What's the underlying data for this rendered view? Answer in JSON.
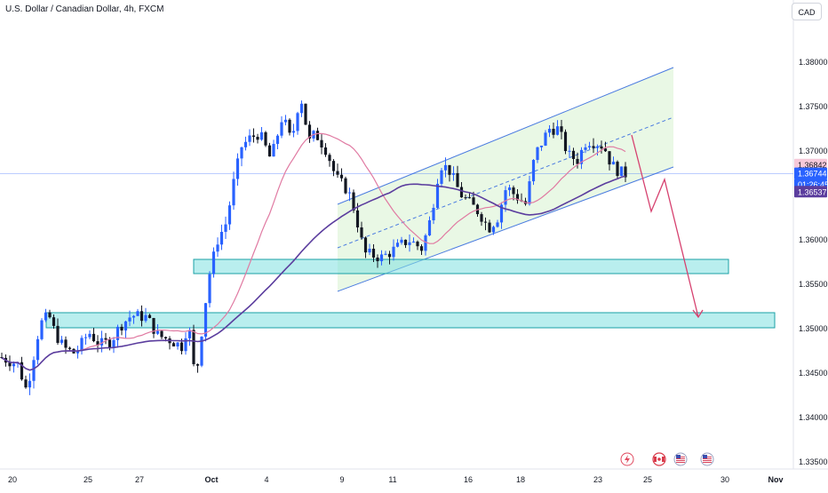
{
  "header": {
    "title": "U.S. Dollar / Canadian Dollar, 4h, FXCM",
    "currency_button": "CAD"
  },
  "chart_data": {
    "type": "candlestick",
    "title": "U.S. Dollar / Canadian Dollar, 4h, FXCM",
    "ylim": [
      1.3325,
      1.385
    ],
    "y_ticks": [
      "1.38000",
      "1.37500",
      "1.37000",
      "1.36000",
      "1.35500",
      "1.35000",
      "1.34500",
      "1.34000",
      "1.33500"
    ],
    "x_ticks": [
      {
        "label": "20",
        "bold": false
      },
      {
        "label": "25",
        "bold": false
      },
      {
        "label": "27",
        "bold": false
      },
      {
        "label": "Oct",
        "bold": true
      },
      {
        "label": "4",
        "bold": false
      },
      {
        "label": "9",
        "bold": false
      },
      {
        "label": "11",
        "bold": false
      },
      {
        "label": "16",
        "bold": false
      },
      {
        "label": "18",
        "bold": false
      },
      {
        "label": "23",
        "bold": false
      },
      {
        "label": "25",
        "bold": false
      },
      {
        "label": "30",
        "bold": false
      },
      {
        "label": "Nov",
        "bold": true
      }
    ],
    "price_badges": [
      {
        "label": "1.36842",
        "value": 1.36842,
        "color": "#f6c9d9",
        "text": "dark"
      },
      {
        "label": "1.36744",
        "value": 1.36744,
        "color": "#2962ff",
        "text": "light"
      },
      {
        "label": "01:26:45",
        "value": 1.36618,
        "color": "#2962ff",
        "text": "light"
      },
      {
        "label": "1.36537",
        "value": 1.36537,
        "color": "#5b3d9e",
        "text": "light"
      }
    ],
    "last_price": 1.36744,
    "colors": {
      "up": "#2962ff",
      "down": "#131722",
      "ma_fast": "#e07aa2",
      "ma_slow": "#5b3d9e",
      "channel_fill": "#e2f5dc",
      "channel_line": "#4a7be0",
      "zone_fill": "#7fe0e0",
      "zone_border": "#1aa0a6",
      "arrow": "#d6416f"
    },
    "support_zones": [
      {
        "from": 1.3578,
        "to": 1.3562
      },
      {
        "from": 1.3518,
        "to": 1.3501
      }
    ],
    "projection": [
      1.3673,
      1.3718,
      1.3632,
      1.3668,
      1.3513
    ],
    "events": [
      "flash-event-icon",
      "flag-ca-icon",
      "flag-us-icon",
      "flag-us-icon"
    ]
  }
}
